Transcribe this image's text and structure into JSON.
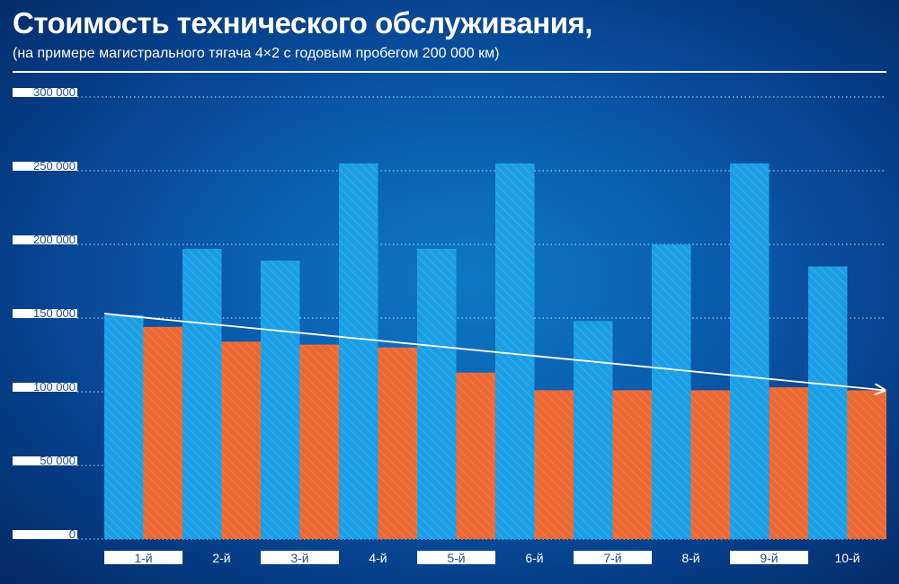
{
  "title": "Стоимость технического обслуживания,",
  "subtitle": "(на примере магистрального тягача 4×2 с годовым пробегом 200 000 км)",
  "colors": {
    "series_a": "#1a9fe6",
    "series_b": "#ec6934",
    "trend": "#ffffff",
    "grid": "#9cc3ea"
  },
  "chart_data": {
    "type": "bar",
    "categories": [
      "1-й",
      "2-й",
      "3-й",
      "4-й",
      "5-й",
      "6-й",
      "7-й",
      "8-й",
      "9-й",
      "10-й"
    ],
    "series": [
      {
        "values": [
          152000,
          197000,
          189000,
          255000,
          197000,
          255000,
          148000,
          200000,
          255000,
          185000
        ]
      },
      {
        "values": [
          144000,
          134000,
          132000,
          130000,
          113000,
          101000,
          101000,
          101000,
          103000,
          101000
        ]
      }
    ],
    "y_ticks": [
      "300 000",
      "250 000",
      "200 000",
      "150 000",
      "100 000",
      "50 000",
      "0"
    ],
    "y_tick_values": [
      300000,
      250000,
      200000,
      150000,
      100000,
      50000,
      0
    ],
    "ylim": [
      0,
      300000
    ],
    "trend_line": {
      "from": 153000,
      "to": 101000
    },
    "grid": true,
    "legend": "none"
  }
}
